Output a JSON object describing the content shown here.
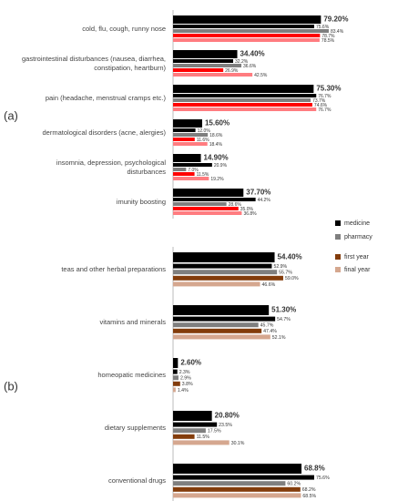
{
  "chart_data": [
    {
      "type": "bar",
      "label": "(a)",
      "xlim": [
        0,
        100
      ],
      "categories": [
        "cold, flu, cough, runny nose",
        "gastrointestinal disturbances (nausea, diarrhea, constipation, heartburn)",
        "pain (headache, menstrual cramps etc.)",
        "dermatological disorders (acne, alergies)",
        "insomnia, depression, psychological disturbances",
        "imunity boosting"
      ],
      "series": [
        {
          "color": "#000000",
          "values": [
            79.2,
            34.4,
            75.3,
            15.6,
            14.9,
            37.7
          ],
          "value_labels": [
            "79.20%",
            "34.40%",
            "75.30%",
            "15.60%",
            "14.90%",
            "37.70%"
          ]
        },
        {
          "name": "medicine",
          "color": "#000000",
          "values": [
            75.6,
            32.2,
            76.7,
            12.0,
            20.9,
            44.2
          ],
          "value_labels": [
            "75.6%",
            "32.2%",
            "76.7%",
            "12.0%",
            "20.9%",
            "44.2%"
          ]
        },
        {
          "name": "pharmacy",
          "color": "#7f7f7f",
          "values": [
            83.4,
            36.6,
            73.7,
            18.6,
            7.0,
            28.6
          ],
          "value_labels": [
            "83.4%",
            "36.6%",
            "73.7%",
            "18.6%",
            "7.0%",
            "28.6%"
          ]
        },
        {
          "name": "first year",
          "color": "#ff0000",
          "values": [
            78.7,
            26.9,
            74.6,
            11.6,
            11.5,
            35.0
          ],
          "value_labels": [
            "78.7%",
            "26.9%",
            "74.6%",
            "11.6%",
            "11.5%",
            "35.0%"
          ]
        },
        {
          "name": "final year",
          "color": "#ff7c80",
          "values": [
            78.5,
            42.5,
            76.7,
            18.4,
            19.2,
            36.8
          ],
          "value_labels": [
            "78.5%",
            "42.5%",
            "76.7%",
            "18.4%",
            "19.2%",
            "36.8%"
          ]
        }
      ]
    },
    {
      "type": "bar",
      "label": "(b)",
      "xlim": [
        0,
        100
      ],
      "categories": [
        "teas and other herbal preparations",
        "vitamins and minerals",
        "homeopatic medicines",
        "dietary supplements",
        "conventional drugs"
      ],
      "series": [
        {
          "color": "#000000",
          "values": [
            54.4,
            51.3,
            2.6,
            20.8,
            68.8
          ],
          "value_labels": [
            "54.40%",
            "51.30%",
            "2.60%",
            "20.80%",
            "68.8%"
          ]
        },
        {
          "name": "medicine",
          "color": "#000000",
          "values": [
            52.9,
            54.7,
            2.3,
            23.5,
            75.6
          ],
          "value_labels": [
            "52.9%",
            "54.7%",
            "2.3%",
            "23.5%",
            "75.6%"
          ]
        },
        {
          "name": "pharmacy",
          "color": "#7f7f7f",
          "values": [
            55.7,
            45.7,
            2.9,
            17.5,
            60.2
          ],
          "value_labels": [
            "55.7%",
            "45.7%",
            "2.9%",
            "17.5%",
            "60.2%"
          ]
        },
        {
          "name": "first year",
          "color": "#833c0b",
          "values": [
            59.0,
            47.4,
            3.8,
            11.5,
            68.2
          ],
          "value_labels": [
            "59.0%",
            "47.4%",
            "3.8%",
            "11.5%",
            "68.2%"
          ]
        },
        {
          "name": "final year",
          "color": "#d5a78f",
          "values": [
            46.6,
            52.1,
            1.4,
            30.1,
            68.5
          ],
          "value_labels": [
            "46.6%",
            "52.1%",
            "1.4%",
            "30.1%",
            "68.5%"
          ]
        }
      ]
    }
  ]
}
